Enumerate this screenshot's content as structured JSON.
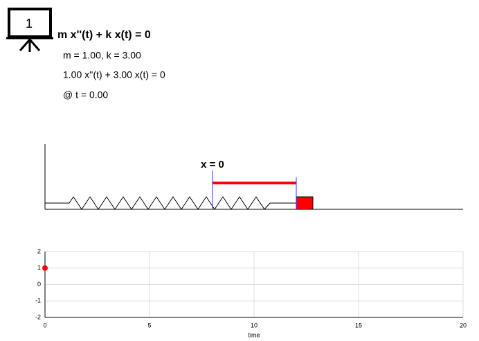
{
  "header": {
    "badge": "1",
    "equation": "m x''(t) + k x(t) = 0",
    "params": "m = 1.00, k = 3.00",
    "instance": "1.00 x''(t) + 3.00 x(t) = 0",
    "time": "@ t = 0.00"
  },
  "spring": {
    "label": "x = 0"
  },
  "chart_data": {
    "type": "scatter",
    "x": [
      0
    ],
    "values": [
      1
    ],
    "color": "#ff0000",
    "xlim": [
      0,
      20
    ],
    "ylim": [
      -2,
      2
    ],
    "xticks": [
      0,
      5,
      10,
      15,
      20
    ],
    "yticks": [
      -2,
      -1,
      0,
      1,
      2
    ],
    "xlabel": "time",
    "grid": true
  }
}
